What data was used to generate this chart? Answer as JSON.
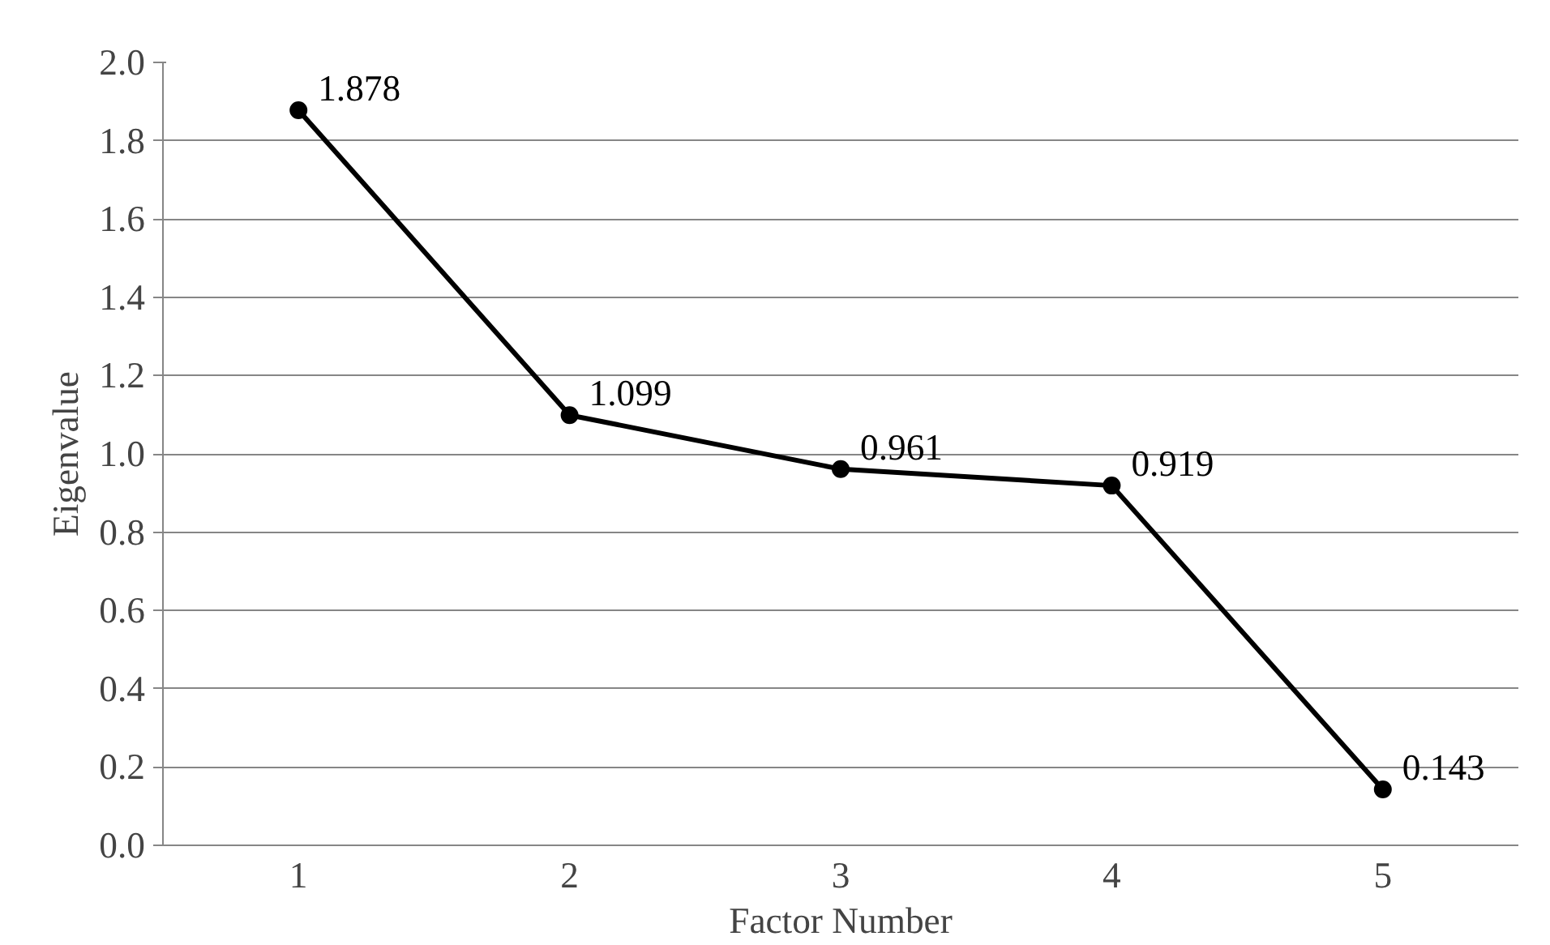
{
  "chart_data": {
    "type": "line",
    "xlabel": "Factor Number",
    "ylabel": "Eigenvalue",
    "categories": [
      "1",
      "2",
      "3",
      "4",
      "5"
    ],
    "series": [
      {
        "color": "#000000",
        "values": [
          1.878,
          1.099,
          0.961,
          0.919,
          0.143
        ]
      }
    ],
    "ylim": [
      0,
      2
    ],
    "yticks": [
      {
        "value": 0,
        "label": "0.0"
      },
      {
        "value": 0.2,
        "label": "0.2"
      },
      {
        "value": 0.4,
        "label": "0.4"
      },
      {
        "value": 0.6,
        "label": "0.6"
      },
      {
        "value": 0.8,
        "label": "0.8"
      },
      {
        "value": 1,
        "label": "1.0"
      },
      {
        "value": 1.2,
        "label": "1.2"
      },
      {
        "value": 1.4,
        "label": "1.4"
      },
      {
        "value": 1.6,
        "label": "1.6"
      },
      {
        "value": 1.8,
        "label": "1.8"
      },
      {
        "value": 2,
        "label": "2.0"
      }
    ],
    "grid": "y",
    "marker": "circle",
    "line_style": "solid",
    "data_labels": true
  }
}
